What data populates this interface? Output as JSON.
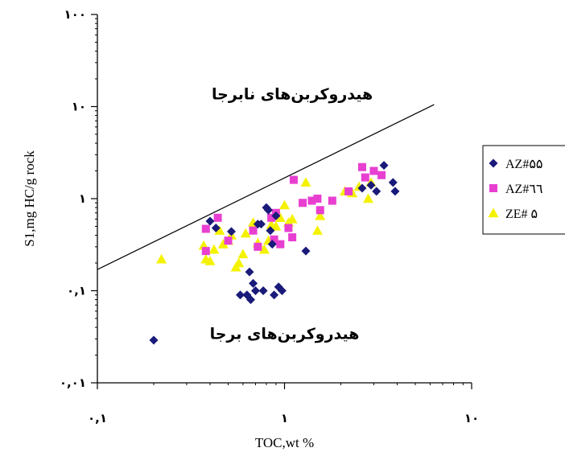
{
  "chart_data": {
    "type": "scatter",
    "title": "",
    "xlabel": "TOC,wt %",
    "ylabel": "S1,mg HC/g rock",
    "x_scale": "log",
    "y_scale": "log",
    "xlim": [
      0.1,
      10
    ],
    "ylim": [
      0.01,
      100
    ],
    "x_ticks": [
      {
        "value": 0.1,
        "label": "٠,١"
      },
      {
        "value": 1,
        "label": "١"
      },
      {
        "value": 10,
        "label": "١٠"
      }
    ],
    "y_ticks": [
      {
        "value": 0.01,
        "label": "٠,٠١"
      },
      {
        "value": 0.1,
        "label": "٠,١"
      },
      {
        "value": 1,
        "label": "١"
      },
      {
        "value": 10,
        "label": "١٠"
      },
      {
        "value": 100,
        "label": "١٠٠"
      }
    ],
    "grid": false,
    "legend_position": "right",
    "reference_line": {
      "points": [
        [
          0.1,
          0.17
        ],
        [
          6.3,
          10.5
        ]
      ]
    },
    "annotations": [
      {
        "text": "هیدروکربن‌های نابرجا",
        "x": 1.1,
        "y": 12
      },
      {
        "text": "هیدروکربن‌های برجا",
        "x": 1.0,
        "y": 0.03
      }
    ],
    "series": [
      {
        "name": "AZ#۵۵",
        "marker": "diamond",
        "color": "#1a1a7a",
        "points": [
          [
            0.2,
            0.029
          ],
          [
            0.4,
            0.57
          ],
          [
            0.43,
            0.48
          ],
          [
            0.52,
            0.44
          ],
          [
            0.58,
            0.09
          ],
          [
            0.63,
            0.09
          ],
          [
            0.65,
            0.16
          ],
          [
            0.66,
            0.08
          ],
          [
            0.68,
            0.12
          ],
          [
            0.7,
            0.1
          ],
          [
            0.72,
            0.53
          ],
          [
            0.75,
            0.53
          ],
          [
            0.77,
            0.1
          ],
          [
            0.8,
            0.8
          ],
          [
            0.82,
            0.75
          ],
          [
            0.84,
            0.45
          ],
          [
            0.86,
            0.32
          ],
          [
            0.88,
            0.09
          ],
          [
            0.9,
            0.65
          ],
          [
            0.93,
            0.11
          ],
          [
            0.97,
            0.1
          ],
          [
            1.3,
            0.27
          ],
          [
            2.6,
            1.3
          ],
          [
            2.9,
            1.4
          ],
          [
            3.1,
            1.2
          ],
          [
            3.4,
            2.3
          ],
          [
            3.8,
            1.5
          ],
          [
            3.9,
            1.2
          ]
        ]
      },
      {
        "name": "AZ#٦٦",
        "marker": "square",
        "color": "#e83fd1",
        "points": [
          [
            0.38,
            0.47
          ],
          [
            0.38,
            0.27
          ],
          [
            0.44,
            0.62
          ],
          [
            0.5,
            0.35
          ],
          [
            0.68,
            0.45
          ],
          [
            0.72,
            0.3
          ],
          [
            0.85,
            0.62
          ],
          [
            0.88,
            0.36
          ],
          [
            0.9,
            0.7
          ],
          [
            0.95,
            0.32
          ],
          [
            1.05,
            0.48
          ],
          [
            1.1,
            0.38
          ],
          [
            1.12,
            1.6
          ],
          [
            1.25,
            0.9
          ],
          [
            1.4,
            0.95
          ],
          [
            1.5,
            1.0
          ],
          [
            1.55,
            0.75
          ],
          [
            1.8,
            0.95
          ],
          [
            2.2,
            1.2
          ],
          [
            2.6,
            2.2
          ],
          [
            2.7,
            1.7
          ],
          [
            3.0,
            2.0
          ],
          [
            3.3,
            1.8
          ]
        ]
      },
      {
        "name": "ZE# ۵",
        "marker": "triangle",
        "color": "#f5f200",
        "points": [
          [
            0.22,
            0.22
          ],
          [
            0.37,
            0.31
          ],
          [
            0.38,
            0.22
          ],
          [
            0.4,
            0.21
          ],
          [
            0.42,
            0.28
          ],
          [
            0.45,
            0.45
          ],
          [
            0.47,
            0.32
          ],
          [
            0.5,
            0.35
          ],
          [
            0.52,
            0.4
          ],
          [
            0.55,
            0.18
          ],
          [
            0.57,
            0.2
          ],
          [
            0.6,
            0.25
          ],
          [
            0.62,
            0.42
          ],
          [
            0.68,
            0.55
          ],
          [
            0.72,
            0.33
          ],
          [
            0.78,
            0.28
          ],
          [
            0.82,
            0.35
          ],
          [
            0.85,
            0.52
          ],
          [
            0.9,
            0.5
          ],
          [
            0.95,
            0.62
          ],
          [
            1.0,
            0.85
          ],
          [
            1.05,
            0.55
          ],
          [
            1.1,
            0.6
          ],
          [
            1.3,
            1.5
          ],
          [
            1.5,
            0.45
          ],
          [
            1.55,
            0.65
          ],
          [
            2.1,
            1.2
          ],
          [
            2.3,
            1.15
          ],
          [
            2.5,
            1.35
          ],
          [
            2.8,
            1.0
          ],
          [
            2.9,
            1.5
          ]
        ]
      }
    ]
  }
}
